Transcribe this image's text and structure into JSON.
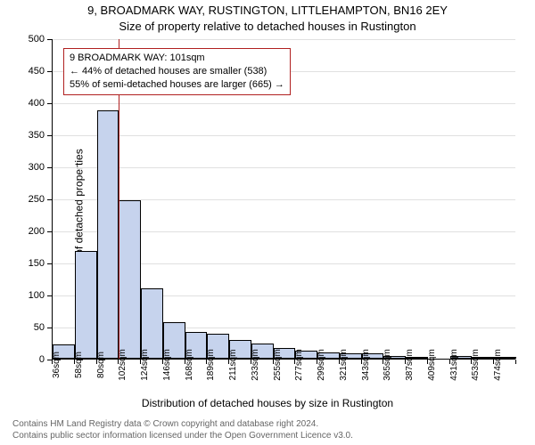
{
  "title": "9, BROADMARK WAY, RUSTINGTON, LITTLEHAMPTON, BN16 2EY",
  "subtitle": "Size of property relative to detached houses in Rustington",
  "ylabel": "Number of detached properties",
  "xlabel": "Distribution of detached houses by size in Rustington",
  "chart": {
    "type": "histogram",
    "ylim": [
      0,
      500
    ],
    "ytick_step": 50,
    "bar_fill": "#c6d3ed",
    "bar_stroke": "#000000",
    "grid_color": "#e0e0e0",
    "ref_line_color": "#b02020",
    "ref_line_x_index": 3,
    "categories": [
      "36sqm",
      "58sqm",
      "80sqm",
      "102sqm",
      "124sqm",
      "146sqm",
      "168sqm",
      "189sqm",
      "211sqm",
      "233sqm",
      "255sqm",
      "277sqm",
      "299sqm",
      "321sqm",
      "343sqm",
      "365sqm",
      "387sqm",
      "409sqm",
      "431sqm",
      "453sqm",
      "474sqm"
    ],
    "values": [
      22,
      168,
      388,
      247,
      110,
      57,
      42,
      39,
      29,
      23,
      17,
      12,
      10,
      8,
      8,
      4,
      3,
      0,
      4,
      3,
      2
    ]
  },
  "annotation": {
    "line1": "9 BROADMARK WAY: 101sqm",
    "line2": "← 44% of detached houses are smaller (538)",
    "line3": "55% of semi-detached houses are larger (665) →"
  },
  "footnote": {
    "line1": "Contains HM Land Registry data © Crown copyright and database right 2024.",
    "line2": "Contains public sector information licensed under the Open Government Licence v3.0."
  }
}
